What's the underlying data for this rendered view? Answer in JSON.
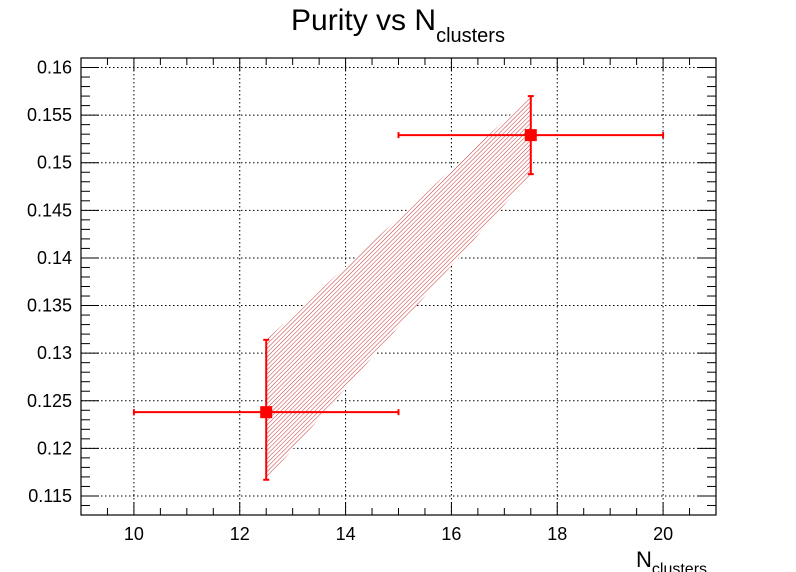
{
  "chart_data": {
    "type": "scatter",
    "title": "Purity vs N",
    "title_subscript": "clusters",
    "xlabel": "N",
    "xlabel_subscript": "clusters",
    "ylabel": "",
    "xlim": [
      9,
      21
    ],
    "ylim": [
      0.113,
      0.161
    ],
    "x_major_ticks": [
      10,
      12,
      14,
      16,
      18,
      20
    ],
    "x_tick_labels": [
      "10",
      "12",
      "14",
      "16",
      "18",
      "20"
    ],
    "y_major_ticks": [
      0.115,
      0.12,
      0.125,
      0.13,
      0.135,
      0.14,
      0.145,
      0.15,
      0.155,
      0.16
    ],
    "y_tick_labels": [
      "0.115",
      "0.12",
      "0.125",
      "0.13",
      "0.135",
      "0.14",
      "0.145",
      "0.15",
      "0.155",
      "0.16"
    ],
    "grid": true,
    "colors": {
      "series": "#ff0000",
      "band": "#cc3333"
    },
    "points": [
      {
        "x": 12.5,
        "y": 0.1238,
        "x_err_low": 2.5,
        "x_err_high": 2.5,
        "y_err_low": 0.0071,
        "y_err_high": 0.0076
      },
      {
        "x": 17.5,
        "y": 0.1529,
        "x_err_low": 2.5,
        "x_err_high": 2.5,
        "y_err_low": 0.0041,
        "y_err_high": 0.0041
      }
    ],
    "error_band": [
      {
        "x": 12.5,
        "low": 0.1167,
        "high": 0.1314
      },
      {
        "x": 17.5,
        "low": 0.1488,
        "high": 0.157
      }
    ]
  }
}
